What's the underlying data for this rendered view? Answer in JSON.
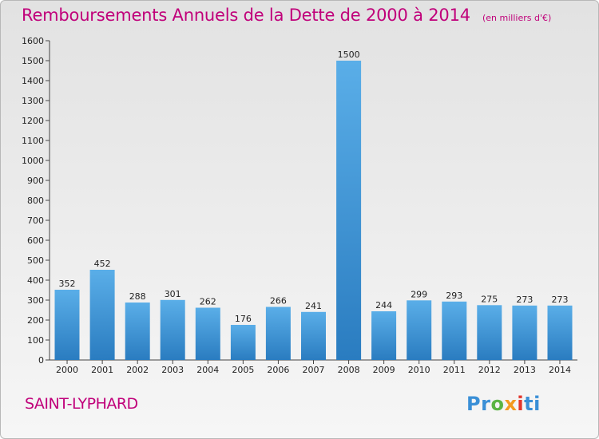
{
  "header": {
    "title": "Remboursements Annuels de la Dette de 2000 à 2014",
    "unit": "(en milliers d'€)"
  },
  "footer": {
    "town": "SAINT-LYPHARD",
    "logo": "Proxiti"
  },
  "colors": {
    "title": "#c0007a",
    "bar_light": "#5aaee8",
    "bar_dark": "#2a7cc0"
  },
  "chart_data": {
    "type": "bar",
    "title": "Remboursements Annuels de la Dette de 2000 à 2014",
    "categories": [
      "2000",
      "2001",
      "2002",
      "2003",
      "2004",
      "2005",
      "2006",
      "2007",
      "2008",
      "2009",
      "2010",
      "2011",
      "2012",
      "2013",
      "2014"
    ],
    "values": [
      352,
      452,
      288,
      301,
      262,
      176,
      266,
      241,
      1500,
      244,
      299,
      293,
      275,
      273,
      273
    ],
    "ylim": [
      0,
      1600
    ],
    "yticks": [
      0,
      100,
      200,
      300,
      400,
      500,
      600,
      700,
      800,
      900,
      1000,
      1100,
      1200,
      1300,
      1400,
      1500,
      1600
    ],
    "grid": false,
    "legend": "none"
  }
}
